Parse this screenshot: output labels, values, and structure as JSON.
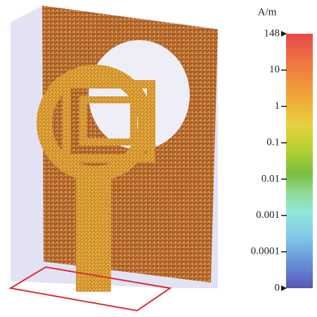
{
  "colorbar": {
    "unit": "A/m",
    "ticks": [
      "148",
      "10",
      "1",
      "0.1",
      "0.01",
      "0.001",
      "0.0001",
      "0"
    ]
  }
}
